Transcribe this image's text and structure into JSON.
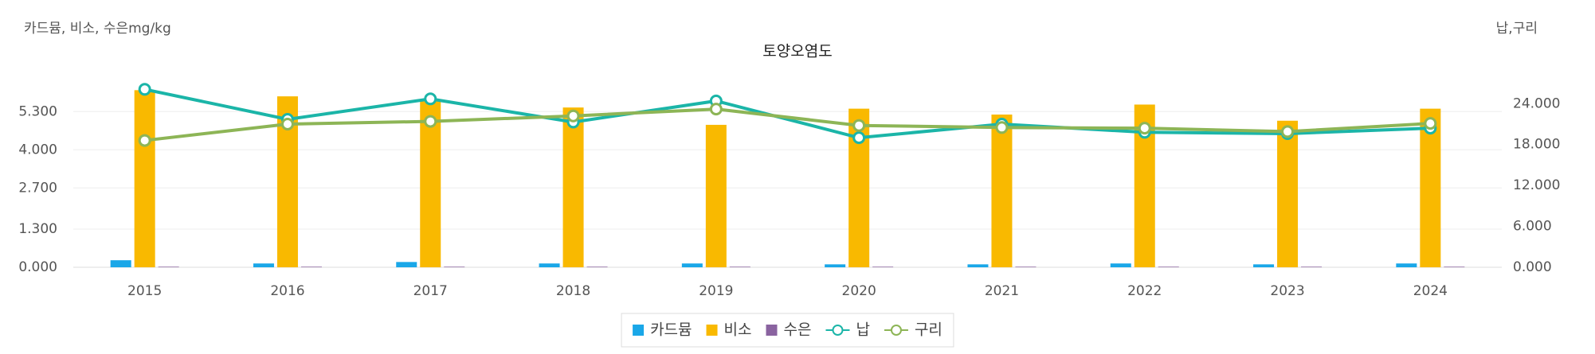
{
  "chart_data": {
    "type": "bar",
    "title": "토양오염도",
    "y_label": "카드뮴, 비소, 수은mg/kg",
    "y2_label": "납,구리",
    "categories": [
      "2015",
      "2016",
      "2017",
      "2018",
      "2019",
      "2020",
      "2021",
      "2022",
      "2023",
      "2024"
    ],
    "series": [
      {
        "name": "카드뮴",
        "type": "bar",
        "color": "#1aa7e8",
        "values": [
          0.24,
          0.13,
          0.18,
          0.13,
          0.13,
          0.1,
          0.1,
          0.13,
          0.1,
          0.13
        ]
      },
      {
        "name": "비소",
        "type": "bar",
        "color": "#f9b900",
        "values": [
          6.03,
          5.82,
          5.65,
          5.44,
          4.85,
          5.4,
          5.2,
          5.54,
          4.99,
          5.4
        ]
      },
      {
        "name": "수은",
        "type": "bar",
        "color": "#8a63a0",
        "values": [
          0.02,
          0.02,
          0.02,
          0.02,
          0.02,
          0.02,
          0.02,
          0.02,
          0.02,
          0.02
        ]
      },
      {
        "name": "납",
        "type": "line",
        "axis": "y2",
        "color": "#1bb5a8",
        "values": [
          26.1,
          21.7,
          24.7,
          21.3,
          24.4,
          19.0,
          21.0,
          19.8,
          19.6,
          20.4
        ]
      },
      {
        "name": "구리",
        "type": "line",
        "axis": "y2",
        "color": "#8db556",
        "values": [
          18.6,
          21.0,
          21.4,
          22.2,
          23.2,
          20.8,
          20.5,
          20.4,
          19.9,
          21.1
        ]
      }
    ],
    "ylim": [
      0,
      6.5
    ],
    "yticks": [
      {
        "value": 0,
        "label": "0.000"
      },
      {
        "value": 1.3,
        "label": "1.300"
      },
      {
        "value": 2.7,
        "label": "2.700"
      },
      {
        "value": 4.0,
        "label": "4.000"
      },
      {
        "value": 5.3,
        "label": "5.300"
      }
    ],
    "y2lim": [
      0,
      28
    ],
    "y2ticks": [
      {
        "value": 0,
        "label": "0.000"
      },
      {
        "value": 6,
        "label": "6.000"
      },
      {
        "value": 12,
        "label": "12.000"
      },
      {
        "value": 18,
        "label": "18.000"
      },
      {
        "value": 24,
        "label": "24.000"
      }
    ],
    "grid": true,
    "legend": "bottom"
  }
}
